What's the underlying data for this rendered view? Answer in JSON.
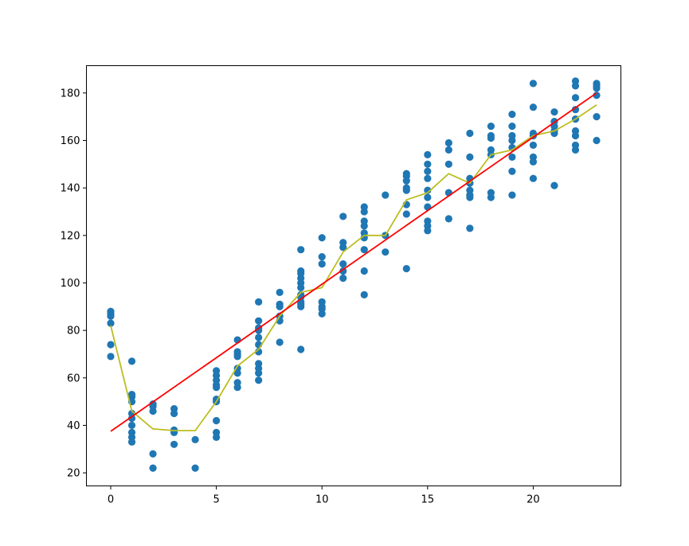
{
  "chart_data": {
    "type": "scatter",
    "title": "",
    "xlabel": "",
    "ylabel": "",
    "xlim": [
      -1.15,
      24.15
    ],
    "ylim": [
      14.5,
      191.5
    ],
    "grid": false,
    "legend": "none",
    "x_ticks": [
      0,
      5,
      10,
      15,
      20
    ],
    "x_tick_labels": [
      "0",
      "5",
      "10",
      "15",
      "20"
    ],
    "y_ticks": [
      20,
      40,
      60,
      80,
      100,
      120,
      140,
      160,
      180
    ],
    "y_tick_labels": [
      "20",
      "40",
      "60",
      "80",
      "100",
      "120",
      "140",
      "160",
      "180"
    ],
    "series": [
      {
        "kind": "scatter",
        "color": "#1f77b4",
        "points": [
          [
            0,
            88
          ],
          [
            0,
            87
          ],
          [
            0,
            86
          ],
          [
            0,
            83
          ],
          [
            0,
            74
          ],
          [
            0,
            69
          ],
          [
            1,
            67
          ],
          [
            1,
            53
          ],
          [
            1,
            52
          ],
          [
            1,
            50
          ],
          [
            1,
            45
          ],
          [
            1,
            43
          ],
          [
            1,
            40
          ],
          [
            1,
            37
          ],
          [
            1,
            35
          ],
          [
            1,
            33
          ],
          [
            2,
            49
          ],
          [
            2,
            48
          ],
          [
            2,
            46
          ],
          [
            2,
            28
          ],
          [
            2,
            22
          ],
          [
            3,
            47
          ],
          [
            3,
            45
          ],
          [
            3,
            38
          ],
          [
            3,
            37
          ],
          [
            3,
            32
          ],
          [
            4,
            34
          ],
          [
            4,
            22
          ],
          [
            5,
            63
          ],
          [
            5,
            61
          ],
          [
            5,
            59
          ],
          [
            5,
            57
          ],
          [
            5,
            56
          ],
          [
            5,
            51
          ],
          [
            5,
            50
          ],
          [
            5,
            42
          ],
          [
            5,
            37
          ],
          [
            5,
            35
          ],
          [
            6,
            76
          ],
          [
            6,
            71
          ],
          [
            6,
            70
          ],
          [
            6,
            69
          ],
          [
            6,
            64
          ],
          [
            6,
            62
          ],
          [
            6,
            58
          ],
          [
            6,
            56
          ],
          [
            7,
            92
          ],
          [
            7,
            84
          ],
          [
            7,
            81
          ],
          [
            7,
            80
          ],
          [
            7,
            77
          ],
          [
            7,
            74
          ],
          [
            7,
            71
          ],
          [
            7,
            66
          ],
          [
            7,
            64
          ],
          [
            7,
            62
          ],
          [
            7,
            59
          ],
          [
            8,
            96
          ],
          [
            8,
            91
          ],
          [
            8,
            90
          ],
          [
            8,
            86
          ],
          [
            8,
            84
          ],
          [
            8,
            75
          ],
          [
            9,
            114
          ],
          [
            9,
            105
          ],
          [
            9,
            104
          ],
          [
            9,
            102
          ],
          [
            9,
            100
          ],
          [
            9,
            98
          ],
          [
            9,
            95
          ],
          [
            9,
            94
          ],
          [
            9,
            92
          ],
          [
            9,
            91
          ],
          [
            9,
            90
          ],
          [
            9,
            72
          ],
          [
            10,
            119
          ],
          [
            10,
            111
          ],
          [
            10,
            108
          ],
          [
            10,
            92
          ],
          [
            10,
            90
          ],
          [
            10,
            89
          ],
          [
            10,
            87
          ],
          [
            11,
            128
          ],
          [
            11,
            117
          ],
          [
            11,
            115
          ],
          [
            11,
            108
          ],
          [
            11,
            105
          ],
          [
            11,
            102
          ],
          [
            12,
            132
          ],
          [
            12,
            130
          ],
          [
            12,
            126
          ],
          [
            12,
            124
          ],
          [
            12,
            121
          ],
          [
            12,
            119
          ],
          [
            12,
            114
          ],
          [
            12,
            105
          ],
          [
            12,
            95
          ],
          [
            13,
            137
          ],
          [
            13,
            120
          ],
          [
            13,
            113
          ],
          [
            14,
            146
          ],
          [
            14,
            145
          ],
          [
            14,
            143
          ],
          [
            14,
            140
          ],
          [
            14,
            139
          ],
          [
            14,
            133
          ],
          [
            14,
            129
          ],
          [
            14,
            106
          ],
          [
            15,
            154
          ],
          [
            15,
            150
          ],
          [
            15,
            147
          ],
          [
            15,
            144
          ],
          [
            15,
            139
          ],
          [
            15,
            136
          ],
          [
            15,
            132
          ],
          [
            15,
            126
          ],
          [
            15,
            124
          ],
          [
            15,
            122
          ],
          [
            16,
            159
          ],
          [
            16,
            156
          ],
          [
            16,
            150
          ],
          [
            16,
            138
          ],
          [
            16,
            127
          ],
          [
            17,
            163
          ],
          [
            17,
            153
          ],
          [
            17,
            144
          ],
          [
            17,
            142
          ],
          [
            17,
            139
          ],
          [
            17,
            137
          ],
          [
            17,
            136
          ],
          [
            17,
            123
          ],
          [
            18,
            166
          ],
          [
            18,
            162
          ],
          [
            18,
            161
          ],
          [
            18,
            156
          ],
          [
            18,
            154
          ],
          [
            18,
            138
          ],
          [
            18,
            136
          ],
          [
            19,
            171
          ],
          [
            19,
            166
          ],
          [
            19,
            162
          ],
          [
            19,
            160
          ],
          [
            19,
            157
          ],
          [
            19,
            153
          ],
          [
            19,
            147
          ],
          [
            19,
            137
          ],
          [
            20,
            184
          ],
          [
            20,
            174
          ],
          [
            20,
            163
          ],
          [
            20,
            162
          ],
          [
            20,
            158
          ],
          [
            20,
            153
          ],
          [
            20,
            151
          ],
          [
            20,
            144
          ],
          [
            21,
            172
          ],
          [
            21,
            168
          ],
          [
            21,
            166
          ],
          [
            21,
            164
          ],
          [
            21,
            163
          ],
          [
            21,
            141
          ],
          [
            22,
            185
          ],
          [
            22,
            183
          ],
          [
            22,
            178
          ],
          [
            22,
            173
          ],
          [
            22,
            169
          ],
          [
            22,
            164
          ],
          [
            22,
            162
          ],
          [
            22,
            158
          ],
          [
            22,
            156
          ],
          [
            23,
            184
          ],
          [
            23,
            183
          ],
          [
            23,
            182
          ],
          [
            23,
            179
          ],
          [
            23,
            170
          ],
          [
            23,
            160
          ]
        ]
      },
      {
        "kind": "line",
        "color": "#bcbd22",
        "x": [
          0,
          1,
          2,
          3,
          4,
          5,
          6,
          7,
          8,
          9,
          10,
          11,
          12,
          13,
          14,
          15,
          16,
          17,
          18,
          19,
          20,
          21,
          22,
          23
        ],
        "y": [
          82,
          46,
          38.5,
          37.8,
          37.8,
          50,
          65,
          72,
          86,
          96,
          98,
          113,
          120,
          120,
          135,
          138,
          146,
          142,
          154,
          156,
          162,
          164,
          169,
          175
        ]
      },
      {
        "kind": "line",
        "color": "#ff0000",
        "x": [
          0,
          23
        ],
        "y": [
          37.5,
          180
        ]
      }
    ]
  }
}
